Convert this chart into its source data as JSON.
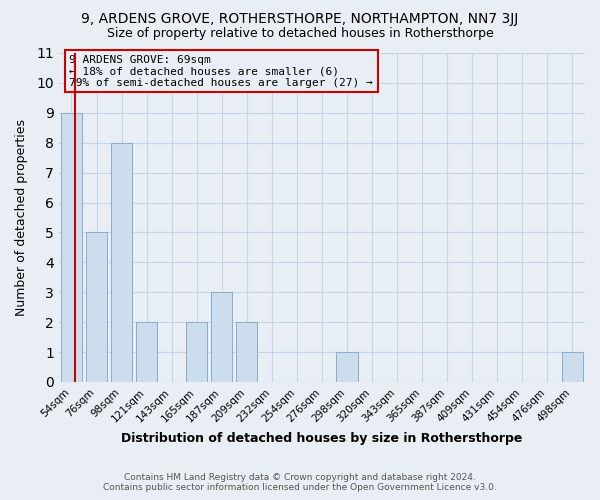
{
  "title": "9, ARDENS GROVE, ROTHERSTHORPE, NORTHAMPTON, NN7 3JJ",
  "subtitle": "Size of property relative to detached houses in Rothersthorpe",
  "xlabel": "Distribution of detached houses by size in Rothersthorpe",
  "ylabel": "Number of detached properties",
  "footer_line1": "Contains HM Land Registry data © Crown copyright and database right 2024.",
  "footer_line2": "Contains public sector information licensed under the Open Government Licence v3.0.",
  "categories": [
    "54sqm",
    "76sqm",
    "98sqm",
    "121sqm",
    "143sqm",
    "165sqm",
    "187sqm",
    "209sqm",
    "232sqm",
    "254sqm",
    "276sqm",
    "298sqm",
    "320sqm",
    "343sqm",
    "365sqm",
    "387sqm",
    "409sqm",
    "431sqm",
    "454sqm",
    "476sqm",
    "498sqm"
  ],
  "values": [
    9,
    5,
    8,
    2,
    0,
    2,
    3,
    2,
    0,
    0,
    0,
    1,
    0,
    0,
    0,
    0,
    0,
    0,
    0,
    0,
    1
  ],
  "bar_color": "#ccdded",
  "bar_edge_color": "#88aec8",
  "highlight_line_color": "#cc0000",
  "ylim": [
    0,
    11
  ],
  "yticks": [
    0,
    1,
    2,
    3,
    4,
    5,
    6,
    7,
    8,
    9,
    10,
    11
  ],
  "annotation_title": "9 ARDENS GROVE: 69sqm",
  "annotation_line1": "← 18% of detached houses are smaller (6)",
  "annotation_line2": "79% of semi-detached houses are larger (27) →",
  "grid_color": "#c5d5e5",
  "background_color": "#e8eef4"
}
